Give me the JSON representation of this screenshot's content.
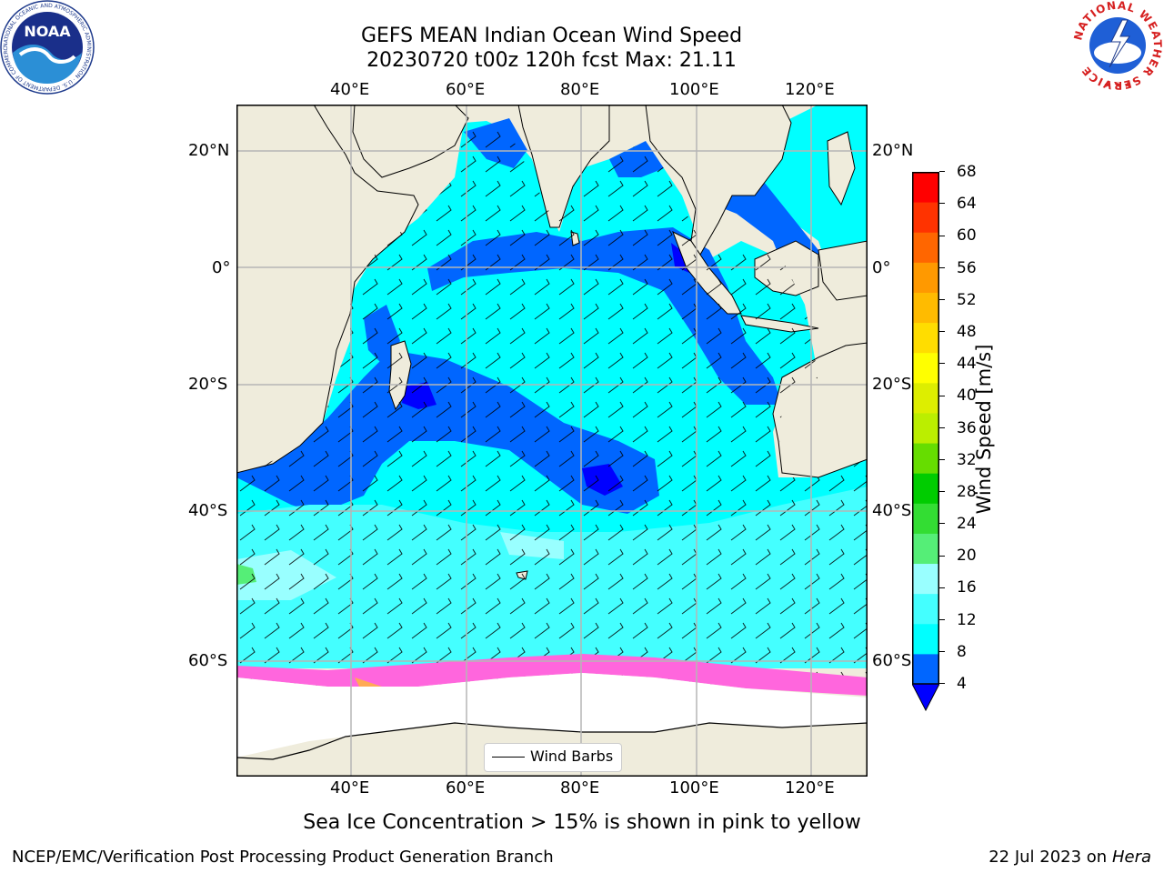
{
  "title_line1": "GEFS MEAN Indian Ocean Wind Speed",
  "title_line2": "20230720 t00z 120h fcst   Max: 21.11",
  "lon_ticks": [
    "40°E",
    "60°E",
    "80°E",
    "100°E",
    "120°E"
  ],
  "lat_ticks_left": [
    "20°N",
    "0°",
    "20°S",
    "40°S",
    "60°S"
  ],
  "lat_ticks_right": [
    "20°N",
    "0°",
    "20°S",
    "40°S",
    "60°S"
  ],
  "legend_label": "Wind Barbs",
  "colorbar": {
    "label": "Wind Speed [m/s]",
    "ticks": [
      "4",
      "8",
      "12",
      "16",
      "20",
      "24",
      "28",
      "32",
      "36",
      "40",
      "44",
      "48",
      "52",
      "56",
      "60",
      "64",
      "68"
    ],
    "colors": [
      "#0000ff",
      "#0066ff",
      "#00ffff",
      "#44ffff",
      "#99ffff",
      "#55ee77",
      "#33dd33",
      "#00cc00",
      "#66dd00",
      "#bbee00",
      "#ddee00",
      "#ffff00",
      "#ffdd00",
      "#ffbb00",
      "#ff9900",
      "#ff6600",
      "#ff3300",
      "#ff0000"
    ]
  },
  "logos": {
    "noaa_text": "NOAA",
    "noaa_ring": "NATIONAL OCEANIC AND ATMOSPHERIC ADMINISTRATION · U.S. DEPARTMENT OF COMMERCE",
    "nws_ring": "NATIONAL WEATHER SERVICE"
  },
  "caption": "Sea Ice Concentration > 15% is shown in pink to yellow",
  "footer_left": "NCEP/EMC/Verification Post Processing Product Generation Branch",
  "footer_date": "22 Jul 2023 on ",
  "footer_host": "Hera"
}
